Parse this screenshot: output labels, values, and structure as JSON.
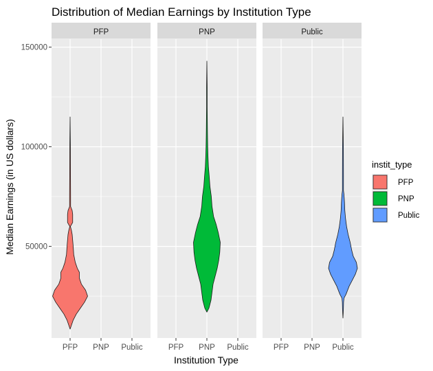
{
  "chart_data": {
    "type": "violin",
    "title": "Distribution of Median Earnings by Institution Type",
    "xlabel": "Institution Type",
    "ylabel": "Median Earnings (in US dollars)",
    "categories": [
      "PFP",
      "PNP",
      "Public"
    ],
    "ylim": [
      4000,
      154000
    ],
    "yticks": [
      50000,
      100000,
      150000
    ],
    "ytick_labels": [
      "50000",
      "100000",
      "150000"
    ],
    "legend": {
      "title": "instit_type",
      "position": "right",
      "entries": [
        "PFP",
        "PNP",
        "Public"
      ]
    },
    "grid": true,
    "series": [
      {
        "name": "PFP",
        "facet": "PFP",
        "x": "PFP",
        "color": "#F8766D",
        "min": 8500,
        "max": 115000,
        "profile": [
          [
            8500,
            0
          ],
          [
            10000,
            1
          ],
          [
            13000,
            3
          ],
          [
            16000,
            6
          ],
          [
            19000,
            10
          ],
          [
            22000,
            14
          ],
          [
            25000,
            17
          ],
          [
            28000,
            15
          ],
          [
            31000,
            11
          ],
          [
            34000,
            9
          ],
          [
            37000,
            9
          ],
          [
            39000,
            7
          ],
          [
            42000,
            5
          ],
          [
            46000,
            3.5
          ],
          [
            50000,
            3
          ],
          [
            53000,
            2.5
          ],
          [
            56000,
            2
          ],
          [
            58000,
            1.3
          ],
          [
            60000,
            0.3
          ],
          [
            62000,
            2.5
          ],
          [
            66000,
            2.5
          ],
          [
            68000,
            2
          ],
          [
            70000,
            0.5
          ],
          [
            75000,
            0.5
          ],
          [
            85000,
            0.4
          ],
          [
            100000,
            0.3
          ],
          [
            115000,
            0
          ]
        ]
      },
      {
        "name": "PNP",
        "facet": "PNP",
        "x": "PNP",
        "color": "#00BA38",
        "min": 17000,
        "max": 143000,
        "profile": [
          [
            17000,
            0
          ],
          [
            19000,
            2
          ],
          [
            23000,
            4
          ],
          [
            27000,
            5
          ],
          [
            31000,
            6
          ],
          [
            35000,
            8
          ],
          [
            39000,
            10
          ],
          [
            43000,
            11.5
          ],
          [
            47000,
            12.5
          ],
          [
            52000,
            13
          ],
          [
            57000,
            11
          ],
          [
            61000,
            9
          ],
          [
            65000,
            6.5
          ],
          [
            70000,
            5
          ],
          [
            75000,
            4.3
          ],
          [
            80000,
            3
          ],
          [
            85000,
            2.3
          ],
          [
            90000,
            1.5
          ],
          [
            95000,
            1.1
          ],
          [
            100000,
            0.8
          ],
          [
            106000,
            0.6
          ],
          [
            110000,
            0.5
          ],
          [
            120000,
            0.3
          ],
          [
            130000,
            0.3
          ],
          [
            143000,
            0
          ]
        ]
      },
      {
        "name": "Public",
        "facet": "Public",
        "x": "Public",
        "color": "#619CFF",
        "min": 14000,
        "max": 115000,
        "profile": [
          [
            14000,
            0
          ],
          [
            18000,
            0.4
          ],
          [
            22000,
            0.6
          ],
          [
            24000,
            1
          ],
          [
            26000,
            3
          ],
          [
            30000,
            6
          ],
          [
            33000,
            9
          ],
          [
            36000,
            12
          ],
          [
            39000,
            14
          ],
          [
            42000,
            13
          ],
          [
            45000,
            10
          ],
          [
            48000,
            8.5
          ],
          [
            52000,
            7
          ],
          [
            56000,
            5
          ],
          [
            60000,
            3.5
          ],
          [
            64000,
            2.5
          ],
          [
            68000,
            1.8
          ],
          [
            72000,
            1.5
          ],
          [
            76000,
            1
          ],
          [
            78000,
            0.5
          ],
          [
            85000,
            0.5
          ],
          [
            100000,
            0.4
          ],
          [
            115000,
            0
          ]
        ]
      }
    ]
  }
}
